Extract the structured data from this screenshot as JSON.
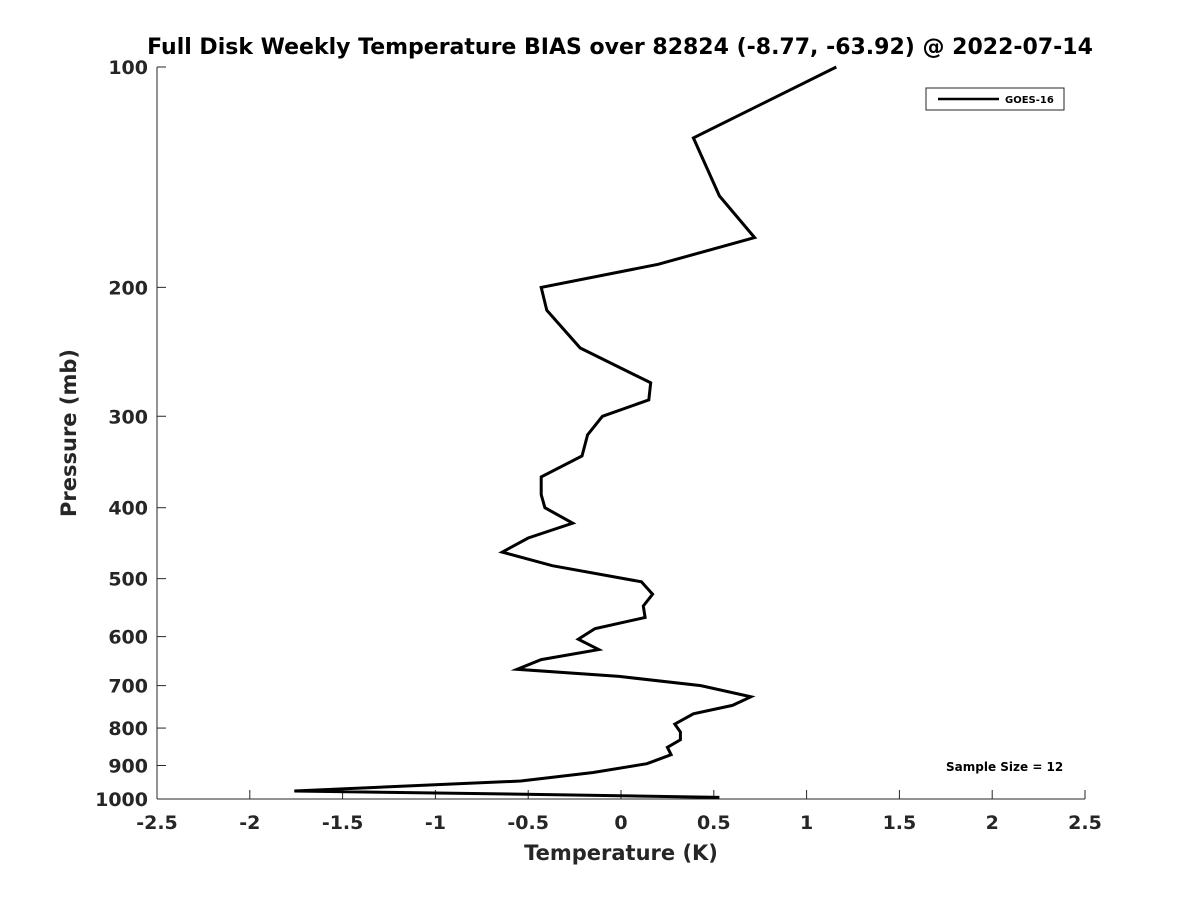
{
  "chart_data": {
    "type": "line",
    "title": "Full Disk Weekly Temperature BIAS over 82824 (-8.77, -63.92) @ 2022-07-14",
    "xlabel": "Temperature (K)",
    "ylabel": "Pressure (mb)",
    "xlim": [
      -2.5,
      2.5
    ],
    "ylim": [
      100,
      1000
    ],
    "y_scale": "log",
    "y_reversed": true,
    "grid": false,
    "legend_placement": "top-right",
    "x_ticks": [
      -2.5,
      -2,
      -1.5,
      -1,
      -0.5,
      0,
      0.5,
      1,
      1.5,
      2,
      2.5
    ],
    "x_tick_labels": [
      "-2.5",
      "-2",
      "-1.5",
      "-1",
      "-0.5",
      "0",
      "0.5",
      "1",
      "1.5",
      "2",
      "2.5"
    ],
    "y_ticks": [
      100,
      200,
      300,
      400,
      500,
      600,
      700,
      800,
      900,
      1000
    ],
    "y_tick_labels": [
      "100",
      "200",
      "300",
      "400",
      "500",
      "600",
      "700",
      "800",
      "900",
      "1000"
    ],
    "series": [
      {
        "name": "GOES-16",
        "color": "#000000",
        "points": [
          {
            "x": 1.16,
            "y": 100
          },
          {
            "x": 0.39,
            "y": 125
          },
          {
            "x": 0.53,
            "y": 150
          },
          {
            "x": 0.72,
            "y": 171
          },
          {
            "x": 0.2,
            "y": 186
          },
          {
            "x": -0.43,
            "y": 200
          },
          {
            "x": -0.4,
            "y": 215
          },
          {
            "x": -0.22,
            "y": 242
          },
          {
            "x": 0.16,
            "y": 270
          },
          {
            "x": 0.15,
            "y": 285
          },
          {
            "x": -0.1,
            "y": 300
          },
          {
            "x": -0.18,
            "y": 318
          },
          {
            "x": -0.21,
            "y": 340
          },
          {
            "x": -0.43,
            "y": 363
          },
          {
            "x": -0.43,
            "y": 384
          },
          {
            "x": -0.41,
            "y": 400
          },
          {
            "x": -0.26,
            "y": 420
          },
          {
            "x": -0.5,
            "y": 440
          },
          {
            "x": -0.64,
            "y": 460
          },
          {
            "x": -0.37,
            "y": 480
          },
          {
            "x": 0.11,
            "y": 505
          },
          {
            "x": 0.17,
            "y": 525
          },
          {
            "x": 0.12,
            "y": 545
          },
          {
            "x": 0.13,
            "y": 565
          },
          {
            "x": -0.14,
            "y": 585
          },
          {
            "x": -0.23,
            "y": 605
          },
          {
            "x": -0.12,
            "y": 625
          },
          {
            "x": -0.43,
            "y": 645
          },
          {
            "x": -0.56,
            "y": 665
          },
          {
            "x": -0.01,
            "y": 680
          },
          {
            "x": 0.43,
            "y": 700
          },
          {
            "x": 0.7,
            "y": 725
          },
          {
            "x": 0.6,
            "y": 745
          },
          {
            "x": 0.39,
            "y": 765
          },
          {
            "x": 0.29,
            "y": 790
          },
          {
            "x": 0.32,
            "y": 810
          },
          {
            "x": 0.32,
            "y": 830
          },
          {
            "x": 0.25,
            "y": 850
          },
          {
            "x": 0.27,
            "y": 870
          },
          {
            "x": 0.14,
            "y": 895
          },
          {
            "x": -0.15,
            "y": 920
          },
          {
            "x": -0.54,
            "y": 945
          },
          {
            "x": -1.76,
            "y": 975
          },
          {
            "x": -0.52,
            "y": 985
          },
          {
            "x": 0.53,
            "y": 995
          }
        ]
      }
    ],
    "annotations": [
      "Sample Size = 12"
    ]
  }
}
